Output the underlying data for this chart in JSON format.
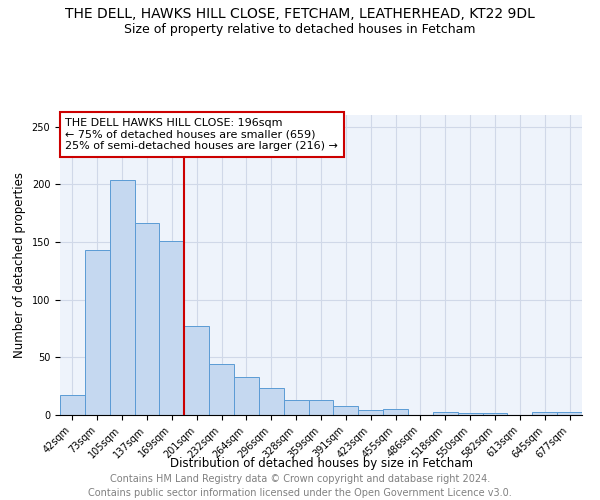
{
  "title": "THE DELL, HAWKS HILL CLOSE, FETCHAM, LEATHERHEAD, KT22 9DL",
  "subtitle": "Size of property relative to detached houses in Fetcham",
  "xlabel": "Distribution of detached houses by size in Fetcham",
  "ylabel": "Number of detached properties",
  "footer_line1": "Contains HM Land Registry data © Crown copyright and database right 2024.",
  "footer_line2": "Contains public sector information licensed under the Open Government Licence v3.0.",
  "annotation_line1": "THE DELL HAWKS HILL CLOSE: 196sqm",
  "annotation_line2": "← 75% of detached houses are smaller (659)",
  "annotation_line3": "25% of semi-detached houses are larger (216) →",
  "red_line_bin_index": 4.5,
  "bin_labels": [
    "42sqm",
    "73sqm",
    "105sqm",
    "137sqm",
    "169sqm",
    "201sqm",
    "232sqm",
    "264sqm",
    "296sqm",
    "328sqm",
    "359sqm",
    "391sqm",
    "423sqm",
    "455sqm",
    "486sqm",
    "518sqm",
    "550sqm",
    "582sqm",
    "613sqm",
    "645sqm",
    "677sqm"
  ],
  "bar_heights": [
    17,
    143,
    204,
    166,
    151,
    77,
    44,
    33,
    23,
    13,
    13,
    8,
    4,
    5,
    0,
    3,
    2,
    2,
    0,
    3,
    3
  ],
  "bar_color": "#c5d8f0",
  "bar_edge_color": "#5b9bd5",
  "red_line_color": "#cc0000",
  "annotation_box_color": "#cc0000",
  "grid_color": "#d0d8e8",
  "background_color": "#eef3fb",
  "ylim": [
    0,
    260
  ],
  "title_fontsize": 10,
  "subtitle_fontsize": 9,
  "axis_label_fontsize": 8.5,
  "tick_fontsize": 7,
  "annotation_fontsize": 8,
  "footer_fontsize": 7
}
